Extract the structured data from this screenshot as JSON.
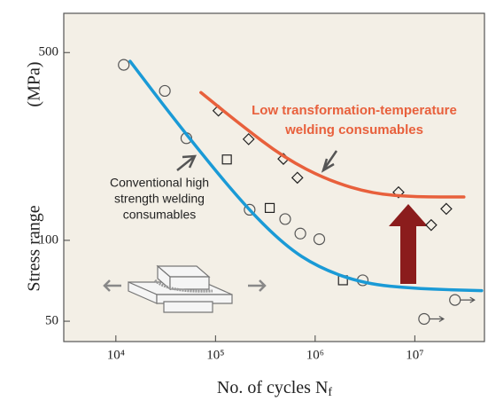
{
  "chart_data": {
    "type": "scatter",
    "xlabel": {
      "text": "No. of cycles N",
      "subscript": "f"
    },
    "ylabel": [
      "Stress range",
      "(MPa)"
    ],
    "xscale": "log",
    "yscale": "log",
    "xlim": [
      3000,
      50000000
    ],
    "ylim": [
      42,
      700
    ],
    "xticks": [
      {
        "value": 10000,
        "label": "10⁴"
      },
      {
        "value": 100000,
        "label": "10⁵"
      },
      {
        "value": 1000000,
        "label": "10⁶"
      },
      {
        "value": 10000000,
        "label": "10⁷"
      }
    ],
    "yticks": [
      50,
      100,
      500
    ],
    "background": "#f3efe6",
    "annotations": [
      {
        "lines": [
          "Low transformation-temperature",
          "welding consumables"
        ],
        "color": "#e8603c"
      },
      {
        "lines": [
          "Conventional high",
          "strength welding",
          "consumables"
        ],
        "color": "#222222"
      }
    ],
    "series": [
      {
        "marker": "circle",
        "color": "#555555",
        "x": [
          12000,
          31000,
          51000,
          220000,
          500000,
          710000,
          1100000,
          3000000
        ],
        "values": [
          450,
          360,
          240,
          130,
          120,
          106,
          101,
          71
        ]
      },
      {
        "marker": "square",
        "color": "#222222",
        "x": [
          130000,
          350000,
          1900000
        ],
        "values": [
          200,
          132,
          71
        ]
      },
      {
        "marker": "diamond",
        "color": "#222222",
        "x": [
          107000,
          215000,
          480000,
          663000,
          6860000,
          14600000,
          20700000
        ],
        "values": [
          304,
          238,
          201,
          171,
          151,
          114,
          131
        ]
      },
      {
        "marker": "runout",
        "color": "#555555",
        "x": [
          12400000,
          25300000
        ],
        "values": [
          51,
          60
        ]
      },
      {
        "marker": "line",
        "color": "#1a9ad6",
        "x": [
          13900,
          41900,
          175000,
          489000,
          1100000,
          3080000,
          10500000,
          46900000
        ],
        "values": [
          464,
          271,
          141,
          96,
          79,
          69,
          66,
          65
        ]
      },
      {
        "marker": "line",
        "color": "#e8603c",
        "x": [
          71300,
          175000,
          489000,
          1360000,
          3780000,
          10500000,
          31100000
        ],
        "values": [
          355,
          271,
          203,
          167,
          149,
          145,
          145
        ]
      }
    ]
  }
}
